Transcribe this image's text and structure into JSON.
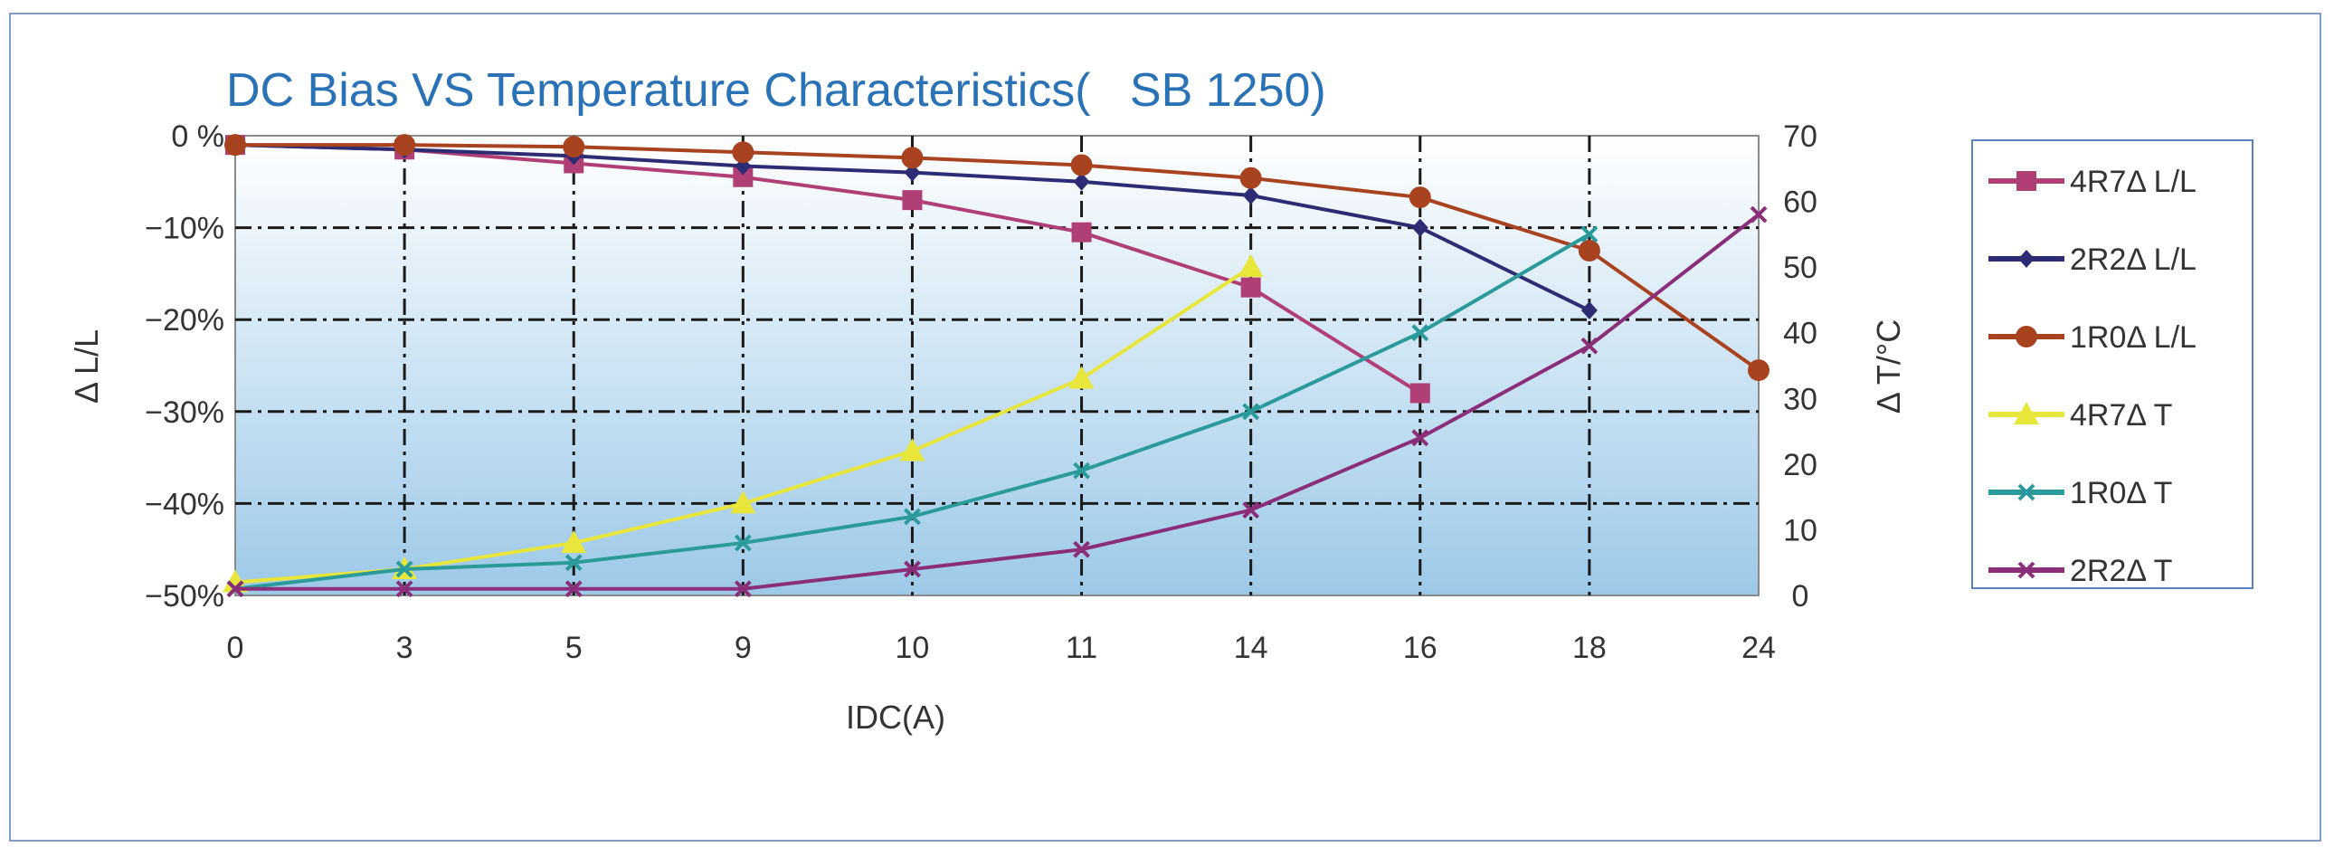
{
  "chart_data": {
    "type": "line",
    "title": "DC Bias VS Temperature Characteristics(   SB 1250)",
    "xlabel": "IDC(A)",
    "ylabel_left": "Δ L/L",
    "ylabel_right": "Δ T/°C",
    "categories": [
      "0",
      "3",
      "5",
      "9",
      "10",
      "11",
      "14",
      "16",
      "18",
      "24"
    ],
    "y_left": {
      "ylim": [
        -50,
        0
      ],
      "ticks": [
        "0 %",
        "−10%",
        "−20%",
        "−30%",
        "−40%",
        "−50%"
      ],
      "tick_values": [
        0,
        -10,
        -20,
        -30,
        -40,
        -50
      ]
    },
    "y_right": {
      "ylim": [
        0,
        70
      ],
      "ticks": [
        "70",
        "60",
        "50",
        "40",
        "30",
        "20",
        "10",
        "0"
      ],
      "tick_values": [
        70,
        60,
        50,
        40,
        30,
        20,
        10,
        0
      ]
    },
    "grid": "dash-dot",
    "legend_position": "right",
    "series": [
      {
        "name": "4R7Δ L/L",
        "axis": "left",
        "color": "#b03f76",
        "marker": "square",
        "points": [
          [
            0,
            -1
          ],
          [
            1,
            -1.5
          ],
          [
            2,
            -3
          ],
          [
            3,
            -4.5
          ],
          [
            4,
            -7
          ],
          [
            5,
            -10.5
          ],
          [
            6,
            -16.5
          ],
          [
            7,
            -28
          ]
        ]
      },
      {
        "name": "2R2Δ L/L",
        "axis": "left",
        "color": "#2c2b73",
        "marker": "diamond",
        "points": [
          [
            0,
            -1
          ],
          [
            1,
            -1.5
          ],
          [
            2,
            -2.2
          ],
          [
            3,
            -3.3
          ],
          [
            4,
            -4
          ],
          [
            5,
            -5
          ],
          [
            6,
            -6.5
          ],
          [
            7,
            -10
          ],
          [
            8,
            -19
          ]
        ]
      },
      {
        "name": "1R0Δ L/L",
        "axis": "left",
        "color": "#a8421f",
        "marker": "circle",
        "points": [
          [
            0,
            -1
          ],
          [
            1,
            -1
          ],
          [
            2,
            -1.2
          ],
          [
            3,
            -1.8
          ],
          [
            4,
            -2.4
          ],
          [
            5,
            -3.2
          ],
          [
            6,
            -4.6
          ],
          [
            7,
            -6.7
          ],
          [
            8,
            -12.5
          ],
          [
            9,
            -25.5
          ]
        ]
      },
      {
        "name": "4R7Δ T",
        "axis": "right",
        "color": "#e8e63a",
        "marker": "triangle",
        "points": [
          [
            0,
            2
          ],
          [
            1,
            4
          ],
          [
            2,
            8
          ],
          [
            3,
            14
          ],
          [
            4,
            22
          ],
          [
            5,
            33
          ],
          [
            6,
            50
          ]
        ]
      },
      {
        "name": "1R0Δ T",
        "axis": "right",
        "color": "#2a9a9a",
        "marker": "x",
        "points": [
          [
            0,
            1
          ],
          [
            1,
            4
          ],
          [
            2,
            5
          ],
          [
            3,
            8
          ],
          [
            4,
            12
          ],
          [
            5,
            19
          ],
          [
            6,
            28
          ],
          [
            7,
            40
          ],
          [
            8,
            55
          ]
        ]
      },
      {
        "name": "2R2Δ T",
        "axis": "right",
        "color": "#8a2e7a",
        "marker": "x",
        "points": [
          [
            0,
            1
          ],
          [
            1,
            1
          ],
          [
            2,
            1
          ],
          [
            3,
            1
          ],
          [
            4,
            4
          ],
          [
            5,
            7
          ],
          [
            6,
            13
          ],
          [
            7,
            24
          ],
          [
            8,
            38
          ],
          [
            9,
            58
          ]
        ]
      }
    ]
  }
}
